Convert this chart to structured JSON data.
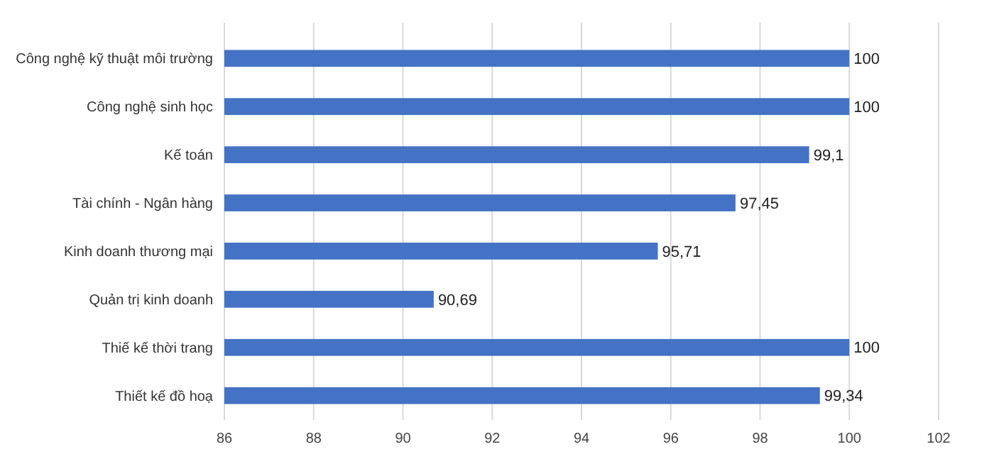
{
  "chart_data": {
    "type": "bar",
    "orientation": "horizontal",
    "categories": [
      "Công nghệ kỹ thuật môi trường",
      "Công nghệ sinh học",
      "Kế toán",
      "Tài chính - Ngân hàng",
      "Kinh doanh thương mại",
      "Quản trị kinh doanh",
      "Thiế kế thời trang",
      "Thiết kế đồ hoạ"
    ],
    "values": [
      100,
      100,
      99.1,
      97.45,
      95.71,
      90.69,
      100,
      99.34
    ],
    "value_labels": [
      "100",
      "100",
      "99,1",
      "97,45",
      "95,71",
      "90,69",
      "100",
      "99,34"
    ],
    "color": "#4472c4",
    "xlim": [
      86,
      102
    ],
    "xticks": [
      86,
      88,
      90,
      92,
      94,
      96,
      98,
      100,
      102
    ],
    "grid": "x"
  }
}
